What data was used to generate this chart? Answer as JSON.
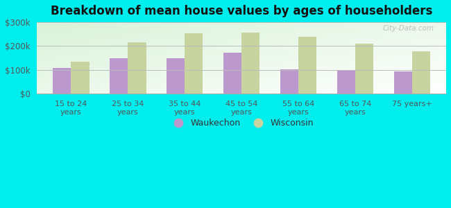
{
  "title": "Breakdown of mean house values by ages of householders",
  "categories": [
    "15 to 24\nyears",
    "25 to 34\nyears",
    "35 to 44\nyears",
    "45 to 54\nyears",
    "55 to 64\nyears",
    "65 to 74\nyears",
    "75 years+"
  ],
  "waukechon": [
    108000,
    148000,
    148000,
    172000,
    103000,
    101000,
    95000
  ],
  "wisconsin": [
    135000,
    215000,
    253000,
    258000,
    240000,
    210000,
    178000
  ],
  "waukechon_color": "#bb99cc",
  "wisconsin_color": "#c8d4a0",
  "background_color": "#00eeee",
  "ylim": [
    0,
    300000
  ],
  "yticks": [
    0,
    100000,
    200000,
    300000
  ],
  "ytick_labels": [
    "$0",
    "$100k",
    "$200k",
    "$300k"
  ],
  "legend_waukechon": "Waukechon",
  "legend_wisconsin": "Wisconsin",
  "watermark": "City-Data.com"
}
